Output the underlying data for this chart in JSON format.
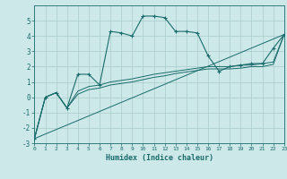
{
  "xlabel": "Humidex (Indice chaleur)",
  "bg_color": "#cce8e8",
  "line_color": "#1a6b6b",
  "grid_color": "#aacccc",
  "xlim": [
    0,
    23
  ],
  "ylim": [
    -3,
    6
  ],
  "xticks": [
    0,
    1,
    2,
    3,
    4,
    5,
    6,
    7,
    8,
    9,
    10,
    11,
    12,
    13,
    14,
    15,
    16,
    17,
    18,
    19,
    20,
    21,
    22,
    23
  ],
  "yticks": [
    -3,
    -2,
    -1,
    0,
    1,
    2,
    3,
    4,
    5
  ],
  "lines": [
    {
      "x": [
        0,
        1,
        2,
        3,
        4,
        5,
        6,
        7,
        8,
        9,
        10,
        11,
        12,
        13,
        14,
        15,
        16,
        17,
        18,
        19,
        20,
        21,
        22,
        23
      ],
      "y": [
        -2.7,
        0.0,
        0.3,
        -0.7,
        1.5,
        1.5,
        0.8,
        4.3,
        4.2,
        4.0,
        5.3,
        5.3,
        5.2,
        4.3,
        4.3,
        4.2,
        2.7,
        1.7,
        2.0,
        2.1,
        2.2,
        2.2,
        3.2,
        4.1
      ],
      "marker": true
    },
    {
      "x": [
        0,
        1,
        2,
        3,
        4,
        5,
        6,
        7,
        8,
        9,
        10,
        11,
        12,
        13,
        14,
        15,
        16,
        17,
        18,
        19,
        20,
        21,
        22,
        23
      ],
      "y": [
        -2.7,
        0.0,
        0.3,
        -0.7,
        0.4,
        0.7,
        0.8,
        1.0,
        1.1,
        1.2,
        1.35,
        1.5,
        1.6,
        1.7,
        1.8,
        1.9,
        2.0,
        2.0,
        2.0,
        2.1,
        2.1,
        2.2,
        2.3,
        4.1
      ],
      "marker": false
    },
    {
      "x": [
        0,
        1,
        2,
        3,
        4,
        5,
        6,
        7,
        8,
        9,
        10,
        11,
        12,
        13,
        14,
        15,
        16,
        17,
        18,
        19,
        20,
        21,
        22,
        23
      ],
      "y": [
        -2.7,
        0.0,
        0.3,
        -0.7,
        0.2,
        0.5,
        0.6,
        0.8,
        0.9,
        1.0,
        1.15,
        1.3,
        1.4,
        1.55,
        1.65,
        1.75,
        1.85,
        1.85,
        1.85,
        1.9,
        2.0,
        2.0,
        2.15,
        4.1
      ],
      "marker": false
    },
    {
      "x": [
        0,
        23
      ],
      "y": [
        -2.7,
        4.1
      ],
      "marker": false
    }
  ]
}
